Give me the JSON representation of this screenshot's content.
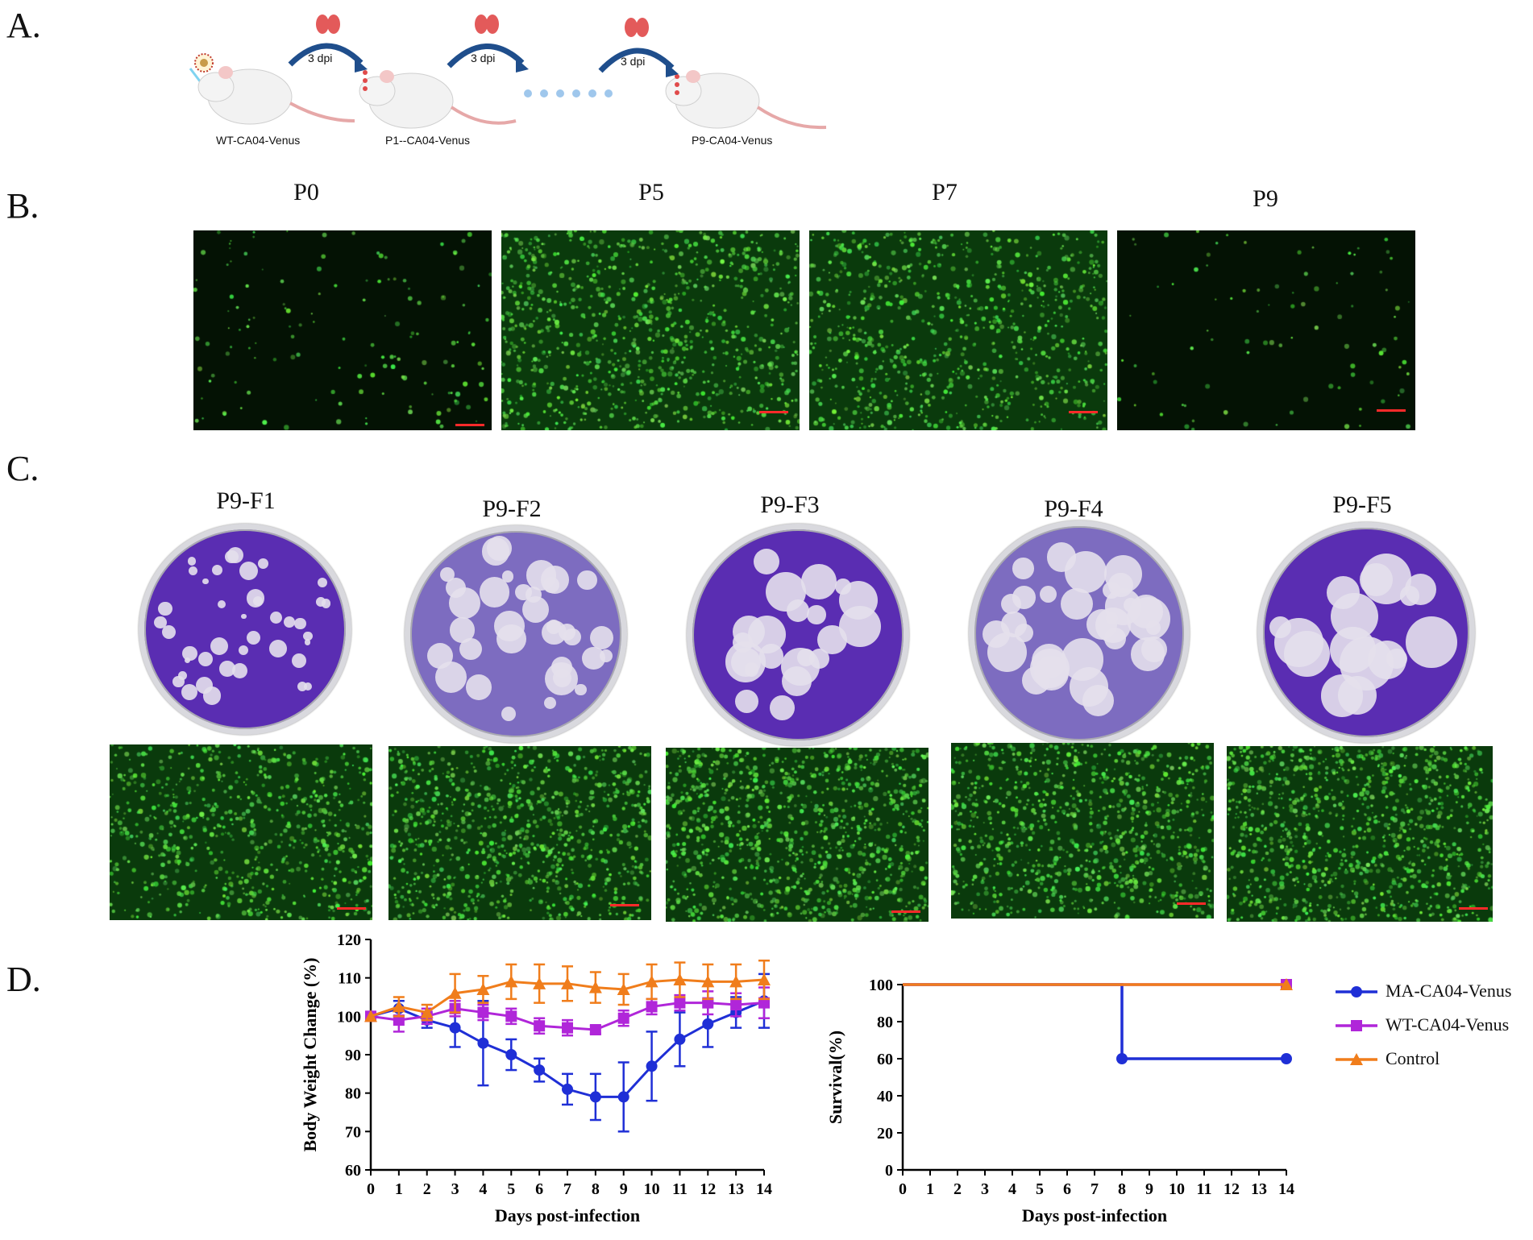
{
  "panels": {
    "a": {
      "letter": "A.",
      "steps": [
        "WT-CA04-Venus",
        "P1--CA04-Venus",
        "P9-CA04-Venus"
      ],
      "arrow_label": "3 dpi"
    },
    "b": {
      "letter": "B.",
      "labels": [
        "P0",
        "P5",
        "P7",
        "P9"
      ]
    },
    "c": {
      "letter": "C.",
      "labels": [
        "P9-F1",
        "P9-F2",
        "P9-F3",
        "P9-F4",
        "P9-F5"
      ]
    },
    "d": {
      "letter": "D."
    }
  },
  "colors": {
    "ma": "#1f2fd6",
    "wt": "#b026d9",
    "control": "#f07d1b",
    "fluor": "#35d435",
    "crystal_violet": "#5a2db2",
    "scalebar": "#ff2a2a"
  },
  "chart_data": [
    {
      "type": "line",
      "title": "",
      "xlabel": "Days post-infection",
      "ylabel": "Body Weight Change (%)",
      "xlim": [
        0,
        14
      ],
      "ylim": [
        60,
        120
      ],
      "x": [
        0,
        1,
        2,
        3,
        4,
        5,
        6,
        7,
        8,
        9,
        10,
        11,
        12,
        13,
        14
      ],
      "xticks": [
        0,
        1,
        2,
        3,
        4,
        5,
        6,
        7,
        8,
        9,
        10,
        11,
        12,
        13,
        14
      ],
      "yticks": [
        60,
        70,
        80,
        90,
        100,
        110,
        120
      ],
      "series": [
        {
          "name": "MA-CA04-Venus",
          "color": "#1f2fd6",
          "marker": "circle",
          "values": [
            100,
            102,
            99,
            97,
            93,
            90,
            86,
            81,
            79,
            79,
            87,
            94,
            98,
            101,
            104
          ],
          "errors": [
            0,
            2,
            2,
            5,
            11,
            4,
            3,
            4,
            6,
            9,
            9,
            7,
            6,
            4,
            7
          ]
        },
        {
          "name": "WT-CA04-Venus",
          "color": "#b026d9",
          "marker": "square",
          "values": [
            100,
            99,
            100,
            102,
            101,
            100,
            97.5,
            97,
            96.5,
            99.5,
            102.5,
            103.5,
            103.5,
            103,
            103.5
          ],
          "errors": [
            0,
            3,
            2,
            2,
            2,
            2,
            2,
            2,
            1,
            2,
            2,
            2,
            3,
            3,
            4
          ]
        },
        {
          "name": "Control",
          "color": "#f07d1b",
          "marker": "triangle",
          "values": [
            100,
            102.5,
            101,
            106,
            107,
            109,
            108.5,
            108.5,
            107.5,
            107,
            109,
            109.5,
            109,
            109,
            109.5
          ],
          "errors": [
            0,
            2.5,
            2,
            5,
            3.5,
            4.5,
            5,
            4.5,
            4,
            4,
            4.5,
            4.5,
            4.5,
            4.5,
            5
          ]
        }
      ]
    },
    {
      "type": "line",
      "title": "",
      "xlabel": "Days post-infection",
      "ylabel": "Survival(%)",
      "xlim": [
        0,
        14
      ],
      "ylim": [
        0,
        100
      ],
      "x": [
        0,
        8,
        14
      ],
      "xticks": [
        0,
        1,
        2,
        3,
        4,
        5,
        6,
        7,
        8,
        9,
        10,
        11,
        12,
        13,
        14
      ],
      "yticks": [
        0,
        20,
        40,
        60,
        80,
        100
      ],
      "step": true,
      "legend_position": "right",
      "series": [
        {
          "name": "MA-CA04-Venus",
          "color": "#1f2fd6",
          "marker": "circle",
          "points": [
            [
              0,
              100
            ],
            [
              8,
              100
            ],
            [
              8,
              60
            ],
            [
              14,
              60
            ]
          ]
        },
        {
          "name": "WT-CA04-Venus",
          "color": "#b026d9",
          "marker": "square",
          "points": [
            [
              0,
              100
            ],
            [
              14,
              100
            ]
          ]
        },
        {
          "name": "Control",
          "color": "#f07d1b",
          "marker": "triangle",
          "points": [
            [
              0,
              100
            ],
            [
              14,
              100
            ]
          ]
        }
      ]
    }
  ]
}
